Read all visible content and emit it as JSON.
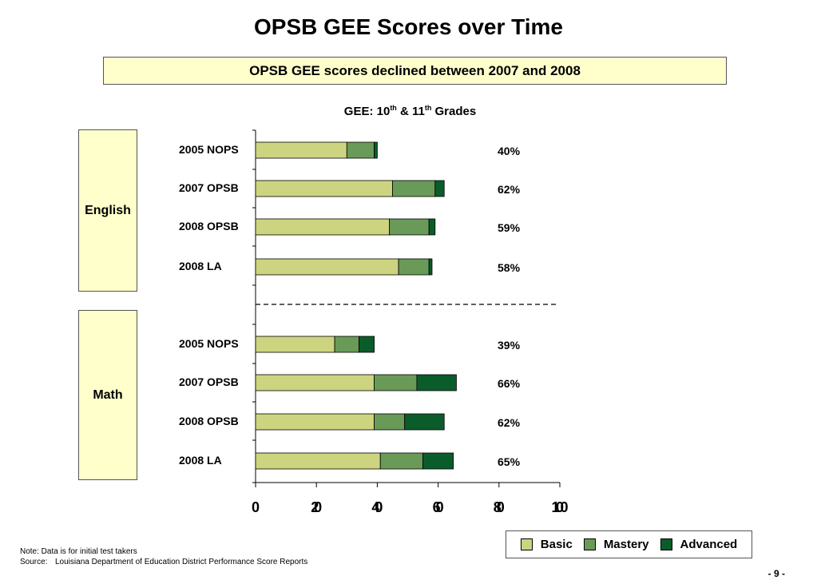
{
  "header": {
    "title": "OPSB GEE Scores over Time",
    "subtitle": "OPSB GEE scores declined between 2007 and 2008"
  },
  "chart_data": {
    "type": "bar",
    "orientation": "horizontal",
    "stacked": true,
    "title_main": "GEE: 10",
    "title_sup1": "th",
    "title_mid": " & 11",
    "title_sup2": "th",
    "title_end": " Grades",
    "xlim": [
      0,
      100
    ],
    "xticks": [
      0,
      20,
      40,
      60,
      80,
      100
    ],
    "grid": false,
    "legend_position": "bottom-right",
    "series_names": [
      "Basic",
      "Mastery",
      "Advanced"
    ],
    "series_colors": [
      "#cdd47f",
      "#6a9a58",
      "#0b5c2b"
    ],
    "groups": [
      {
        "label": "English",
        "rows": [
          {
            "category": "2005 NOPS",
            "values": [
              30,
              9,
              1
            ],
            "total_label": "40%"
          },
          {
            "category": "2007 OPSB",
            "values": [
              45,
              14,
              3
            ],
            "total_label": "62%"
          },
          {
            "category": "2008 OPSB",
            "values": [
              44,
              13,
              2
            ],
            "total_label": "59%"
          },
          {
            "category": "2008 LA",
            "values": [
              47,
              10,
              1
            ],
            "total_label": "58%"
          }
        ]
      },
      {
        "label": "Math",
        "rows": [
          {
            "category": "2005 NOPS",
            "values": [
              26,
              8,
              5
            ],
            "total_label": "39%"
          },
          {
            "category": "2007 OPSB",
            "values": [
              39,
              14,
              13
            ],
            "total_label": "66%"
          },
          {
            "category": "2008 OPSB",
            "values": [
              39,
              10,
              13
            ],
            "total_label": "62%"
          },
          {
            "category": "2008 LA",
            "values": [
              41,
              14,
              10
            ],
            "total_label": "65%"
          }
        ]
      }
    ]
  },
  "legend": {
    "basic": "Basic",
    "mastery": "Mastery",
    "advanced": "Advanced"
  },
  "footer": {
    "note": "Note: Data is for initial test takers",
    "source_label": "Source:",
    "source_text": "Louisiana Department of Education District Performance Score Reports",
    "page_number": "- 9 -"
  }
}
